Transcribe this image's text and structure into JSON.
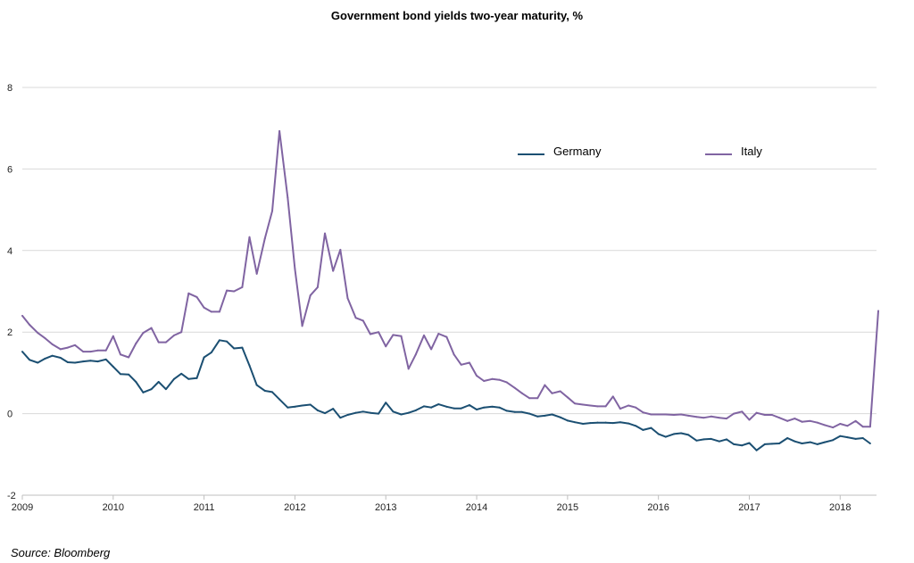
{
  "chart_data": {
    "type": "line",
    "title": "Government bond yields two-year maturity, %",
    "source": "Source: Bloomberg",
    "xlabel": "",
    "ylabel": "",
    "xlim": [
      2009,
      2018.4
    ],
    "ylim": [
      -2,
      8
    ],
    "yticks": [
      -2,
      0,
      2,
      4,
      6,
      8
    ],
    "xticks": [
      "2009",
      "2010",
      "2011",
      "2012",
      "2013",
      "2014",
      "2015",
      "2016",
      "2017",
      "2018"
    ],
    "grid": "horizontal",
    "legend": "top-right",
    "series": [
      {
        "name": "Germany",
        "color": "#1b4f72",
        "points": [
          [
            2009.0,
            1.52
          ],
          [
            2009.08,
            1.32
          ],
          [
            2009.17,
            1.25
          ],
          [
            2009.25,
            1.35
          ],
          [
            2009.33,
            1.42
          ],
          [
            2009.42,
            1.37
          ],
          [
            2009.5,
            1.26
          ],
          [
            2009.58,
            1.25
          ],
          [
            2009.67,
            1.28
          ],
          [
            2009.75,
            1.3
          ],
          [
            2009.83,
            1.28
          ],
          [
            2009.92,
            1.33
          ],
          [
            2010.0,
            1.15
          ],
          [
            2010.08,
            0.97
          ],
          [
            2010.17,
            0.96
          ],
          [
            2010.25,
            0.78
          ],
          [
            2010.33,
            0.52
          ],
          [
            2010.42,
            0.6
          ],
          [
            2010.5,
            0.78
          ],
          [
            2010.58,
            0.6
          ],
          [
            2010.67,
            0.85
          ],
          [
            2010.75,
            0.98
          ],
          [
            2010.83,
            0.85
          ],
          [
            2010.92,
            0.87
          ],
          [
            2011.0,
            1.38
          ],
          [
            2011.08,
            1.5
          ],
          [
            2011.17,
            1.8
          ],
          [
            2011.25,
            1.77
          ],
          [
            2011.33,
            1.6
          ],
          [
            2011.42,
            1.62
          ],
          [
            2011.5,
            1.18
          ],
          [
            2011.58,
            0.7
          ],
          [
            2011.67,
            0.56
          ],
          [
            2011.75,
            0.53
          ],
          [
            2011.83,
            0.35
          ],
          [
            2011.92,
            0.15
          ],
          [
            2012.0,
            0.17
          ],
          [
            2012.08,
            0.2
          ],
          [
            2012.17,
            0.22
          ],
          [
            2012.25,
            0.08
          ],
          [
            2012.33,
            0.01
          ],
          [
            2012.42,
            0.12
          ],
          [
            2012.5,
            -0.1
          ],
          [
            2012.58,
            -0.03
          ],
          [
            2012.67,
            0.02
          ],
          [
            2012.75,
            0.05
          ],
          [
            2012.83,
            0.02
          ],
          [
            2012.92,
            0.0
          ],
          [
            2013.0,
            0.27
          ],
          [
            2013.08,
            0.05
          ],
          [
            2013.17,
            -0.02
          ],
          [
            2013.25,
            0.02
          ],
          [
            2013.33,
            0.08
          ],
          [
            2013.42,
            0.18
          ],
          [
            2013.5,
            0.15
          ],
          [
            2013.58,
            0.23
          ],
          [
            2013.67,
            0.17
          ],
          [
            2013.75,
            0.13
          ],
          [
            2013.83,
            0.13
          ],
          [
            2013.92,
            0.21
          ],
          [
            2014.0,
            0.1
          ],
          [
            2014.08,
            0.15
          ],
          [
            2014.17,
            0.17
          ],
          [
            2014.25,
            0.15
          ],
          [
            2014.33,
            0.07
          ],
          [
            2014.42,
            0.04
          ],
          [
            2014.5,
            0.04
          ],
          [
            2014.58,
            0.0
          ],
          [
            2014.67,
            -0.07
          ],
          [
            2014.75,
            -0.05
          ],
          [
            2014.83,
            -0.02
          ],
          [
            2014.92,
            -0.09
          ],
          [
            2015.0,
            -0.17
          ],
          [
            2015.08,
            -0.21
          ],
          [
            2015.17,
            -0.25
          ],
          [
            2015.25,
            -0.23
          ],
          [
            2015.33,
            -0.22
          ],
          [
            2015.42,
            -0.22
          ],
          [
            2015.5,
            -0.23
          ],
          [
            2015.58,
            -0.21
          ],
          [
            2015.67,
            -0.24
          ],
          [
            2015.75,
            -0.3
          ],
          [
            2015.83,
            -0.4
          ],
          [
            2015.92,
            -0.35
          ],
          [
            2016.0,
            -0.5
          ],
          [
            2016.08,
            -0.57
          ],
          [
            2016.17,
            -0.5
          ],
          [
            2016.25,
            -0.48
          ],
          [
            2016.33,
            -0.52
          ],
          [
            2016.42,
            -0.66
          ],
          [
            2016.5,
            -0.63
          ],
          [
            2016.58,
            -0.62
          ],
          [
            2016.67,
            -0.68
          ],
          [
            2016.75,
            -0.63
          ],
          [
            2016.83,
            -0.75
          ],
          [
            2016.92,
            -0.78
          ],
          [
            2017.0,
            -0.72
          ],
          [
            2017.08,
            -0.9
          ],
          [
            2017.17,
            -0.75
          ],
          [
            2017.25,
            -0.74
          ],
          [
            2017.33,
            -0.73
          ],
          [
            2017.42,
            -0.6
          ],
          [
            2017.5,
            -0.68
          ],
          [
            2017.58,
            -0.73
          ],
          [
            2017.67,
            -0.7
          ],
          [
            2017.75,
            -0.75
          ],
          [
            2017.83,
            -0.7
          ],
          [
            2017.92,
            -0.65
          ],
          [
            2018.0,
            -0.55
          ],
          [
            2018.08,
            -0.58
          ],
          [
            2018.17,
            -0.62
          ],
          [
            2018.25,
            -0.6
          ],
          [
            2018.33,
            -0.73
          ]
        ]
      },
      {
        "name": "Italy",
        "color": "#8064a2",
        "points": [
          [
            2009.0,
            2.4
          ],
          [
            2009.08,
            2.18
          ],
          [
            2009.17,
            1.98
          ],
          [
            2009.25,
            1.85
          ],
          [
            2009.33,
            1.7
          ],
          [
            2009.42,
            1.58
          ],
          [
            2009.5,
            1.62
          ],
          [
            2009.58,
            1.68
          ],
          [
            2009.67,
            1.52
          ],
          [
            2009.75,
            1.52
          ],
          [
            2009.83,
            1.55
          ],
          [
            2009.92,
            1.55
          ],
          [
            2010.0,
            1.9
          ],
          [
            2010.08,
            1.45
          ],
          [
            2010.17,
            1.38
          ],
          [
            2010.25,
            1.72
          ],
          [
            2010.33,
            1.98
          ],
          [
            2010.42,
            2.1
          ],
          [
            2010.5,
            1.75
          ],
          [
            2010.58,
            1.75
          ],
          [
            2010.67,
            1.92
          ],
          [
            2010.75,
            2.0
          ],
          [
            2010.83,
            2.95
          ],
          [
            2010.92,
            2.86
          ],
          [
            2011.0,
            2.6
          ],
          [
            2011.08,
            2.5
          ],
          [
            2011.17,
            2.5
          ],
          [
            2011.25,
            3.02
          ],
          [
            2011.33,
            3.0
          ],
          [
            2011.42,
            3.1
          ],
          [
            2011.5,
            4.33
          ],
          [
            2011.58,
            3.43
          ],
          [
            2011.67,
            4.3
          ],
          [
            2011.75,
            4.97
          ],
          [
            2011.83,
            6.93
          ],
          [
            2011.92,
            5.3
          ],
          [
            2012.0,
            3.55
          ],
          [
            2012.08,
            2.15
          ],
          [
            2012.17,
            2.9
          ],
          [
            2012.25,
            3.1
          ],
          [
            2012.33,
            4.42
          ],
          [
            2012.42,
            3.5
          ],
          [
            2012.5,
            4.02
          ],
          [
            2012.58,
            2.83
          ],
          [
            2012.67,
            2.35
          ],
          [
            2012.75,
            2.28
          ],
          [
            2012.83,
            1.95
          ],
          [
            2012.92,
            2.0
          ],
          [
            2013.0,
            1.65
          ],
          [
            2013.08,
            1.93
          ],
          [
            2013.17,
            1.9
          ],
          [
            2013.25,
            1.1
          ],
          [
            2013.33,
            1.45
          ],
          [
            2013.42,
            1.92
          ],
          [
            2013.5,
            1.58
          ],
          [
            2013.58,
            1.96
          ],
          [
            2013.67,
            1.88
          ],
          [
            2013.75,
            1.45
          ],
          [
            2013.83,
            1.2
          ],
          [
            2013.92,
            1.25
          ],
          [
            2014.0,
            0.93
          ],
          [
            2014.08,
            0.8
          ],
          [
            2014.17,
            0.85
          ],
          [
            2014.25,
            0.83
          ],
          [
            2014.33,
            0.77
          ],
          [
            2014.42,
            0.63
          ],
          [
            2014.5,
            0.5
          ],
          [
            2014.58,
            0.38
          ],
          [
            2014.67,
            0.38
          ],
          [
            2014.75,
            0.7
          ],
          [
            2014.83,
            0.5
          ],
          [
            2014.92,
            0.55
          ],
          [
            2015.0,
            0.4
          ],
          [
            2015.08,
            0.25
          ],
          [
            2015.17,
            0.22
          ],
          [
            2015.25,
            0.2
          ],
          [
            2015.33,
            0.18
          ],
          [
            2015.42,
            0.18
          ],
          [
            2015.5,
            0.42
          ],
          [
            2015.58,
            0.12
          ],
          [
            2015.67,
            0.2
          ],
          [
            2015.75,
            0.15
          ],
          [
            2015.83,
            0.03
          ],
          [
            2015.92,
            -0.02
          ],
          [
            2016.0,
            -0.02
          ],
          [
            2016.08,
            -0.02
          ],
          [
            2016.17,
            -0.03
          ],
          [
            2016.25,
            -0.02
          ],
          [
            2016.33,
            -0.05
          ],
          [
            2016.42,
            -0.08
          ],
          [
            2016.5,
            -0.1
          ],
          [
            2016.58,
            -0.07
          ],
          [
            2016.67,
            -0.1
          ],
          [
            2016.75,
            -0.12
          ],
          [
            2016.83,
            0.0
          ],
          [
            2016.92,
            0.05
          ],
          [
            2017.0,
            -0.15
          ],
          [
            2017.08,
            0.02
          ],
          [
            2017.17,
            -0.03
          ],
          [
            2017.25,
            -0.03
          ],
          [
            2017.33,
            -0.1
          ],
          [
            2017.42,
            -0.18
          ],
          [
            2017.5,
            -0.12
          ],
          [
            2017.58,
            -0.2
          ],
          [
            2017.67,
            -0.18
          ],
          [
            2017.75,
            -0.22
          ],
          [
            2017.83,
            -0.28
          ],
          [
            2017.92,
            -0.34
          ],
          [
            2018.0,
            -0.25
          ],
          [
            2018.08,
            -0.3
          ],
          [
            2018.17,
            -0.18
          ],
          [
            2018.25,
            -0.32
          ],
          [
            2018.33,
            -0.32
          ],
          [
            2018.42,
            2.52
          ]
        ]
      }
    ]
  }
}
